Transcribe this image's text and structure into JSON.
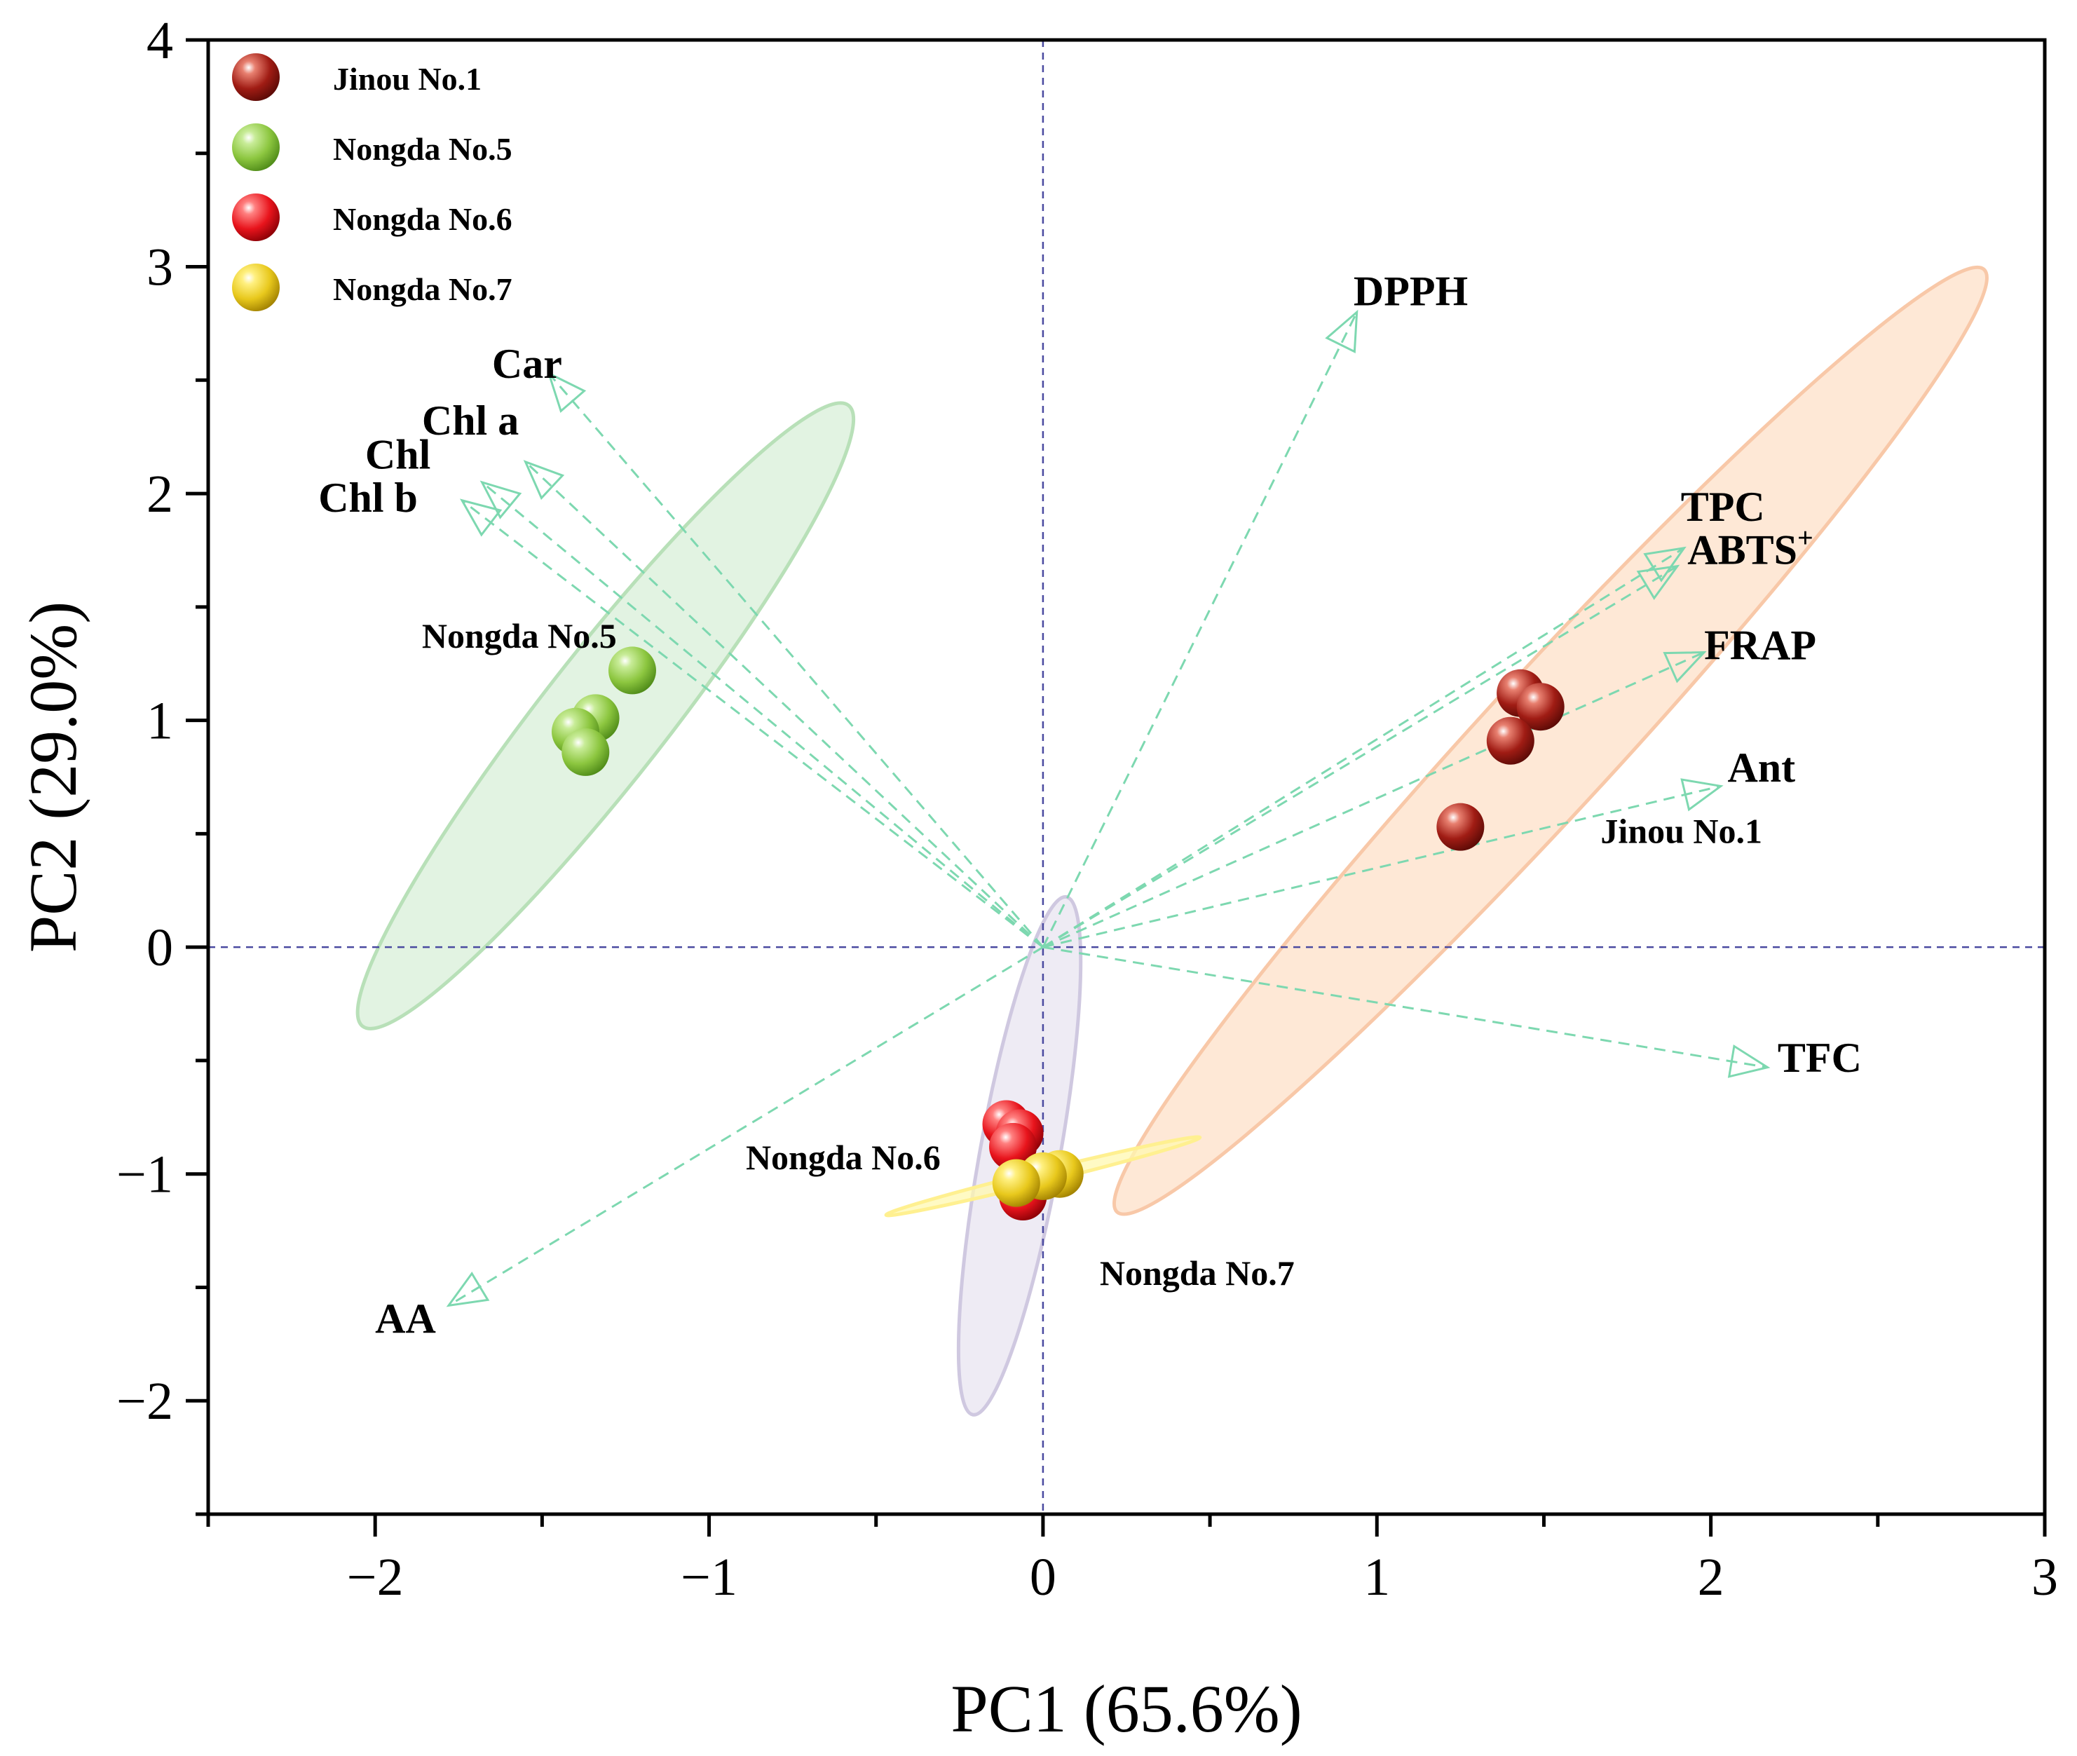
{
  "chart_data": {
    "type": "scatter",
    "subtype": "pca-biplot",
    "xlabel": "PC1 (65.6%)",
    "ylabel": "PC2 (29.0%)",
    "xlim": [
      -2.5,
      3
    ],
    "ylim": [
      -2.5,
      4
    ],
    "xticks": [
      -2,
      -1,
      0,
      1,
      2,
      3
    ],
    "yticks": [
      -2,
      -1,
      0,
      1,
      2,
      3,
      4
    ],
    "xtick_labels": [
      "−2",
      "−1",
      "0",
      "1",
      "2",
      "3"
    ],
    "ytick_labels": [
      "−2",
      "−1",
      "0",
      "1",
      "2",
      "3",
      "4"
    ],
    "grid": false,
    "reference_lines": {
      "x": 0,
      "y": 0
    },
    "legend": {
      "position": "top-left",
      "entries": [
        {
          "name": "Jinou No.1",
          "color": "#a01c14"
        },
        {
          "name": "Nongda No.5",
          "color": "#8cc63f"
        },
        {
          "name": "Nongda No.6",
          "color": "#e8141c"
        },
        {
          "name": "Nongda No.7",
          "color": "#e8c81c"
        }
      ]
    },
    "series": [
      {
        "name": "Jinou No.1",
        "color": "#a01c14",
        "label": "Jinou No.1",
        "points": [
          [
            1.43,
            1.12
          ],
          [
            1.49,
            1.06
          ],
          [
            1.4,
            0.91
          ],
          [
            1.25,
            0.53
          ]
        ],
        "ellipse": {
          "cx": 1.52,
          "cy": 0.91,
          "rx": 2.45,
          "ry": 0.22,
          "angle_deg": 58,
          "fill": "#fde0c8",
          "stroke": "#f8c8a8"
        }
      },
      {
        "name": "Nongda No.5",
        "color": "#8cc63f",
        "label": "Nongda No.5",
        "points": [
          [
            -1.23,
            1.22
          ],
          [
            -1.34,
            1.01
          ],
          [
            -1.4,
            0.95
          ],
          [
            -1.37,
            0.86
          ]
        ],
        "ellipse": {
          "cx": -1.31,
          "cy": 1.02,
          "rx": 1.55,
          "ry": 0.2,
          "angle_deg": 62,
          "fill": "#d8efd8",
          "stroke": "#b8e0b8"
        }
      },
      {
        "name": "Nongda No.6",
        "color": "#e8141c",
        "label": "Nongda No.6",
        "points": [
          [
            -0.11,
            -0.78
          ],
          [
            -0.07,
            -0.82
          ],
          [
            -0.09,
            -0.88
          ],
          [
            -0.06,
            -1.1
          ]
        ],
        "ellipse": {
          "cx": -0.07,
          "cy": -0.92,
          "rx": 1.15,
          "ry": 0.12,
          "angle_deg": 83,
          "fill": "#e8e4f0",
          "stroke": "#cfc8e0"
        }
      },
      {
        "name": "Nongda No.7",
        "color": "#e8c81c",
        "label": "Nongda No.7",
        "points": [
          [
            0.05,
            -1.0
          ],
          [
            0.0,
            -1.01
          ],
          [
            -0.08,
            -1.04
          ]
        ],
        "ellipse": {
          "cx": 0.0,
          "cy": -1.01,
          "rx": 0.5,
          "ry": 0.025,
          "angle_deg": 20,
          "fill": "#fff8b0",
          "stroke": "#fff090"
        }
      }
    ],
    "series_labels": [
      {
        "text": "Nongda No.5",
        "x": -1.86,
        "y": 1.32
      },
      {
        "text": "Jinou No.1",
        "x": 1.67,
        "y": 0.46
      },
      {
        "text": "Nongda No.6",
        "x": -0.89,
        "y": -0.98
      },
      {
        "text": "Nongda No.7",
        "x": 0.17,
        "y": -1.49
      }
    ],
    "loadings": [
      {
        "name": "DPPH",
        "x": 0.94,
        "y": 2.8,
        "label_x": 0.93,
        "label_y": 2.83
      },
      {
        "name": "Car",
        "x": -1.48,
        "y": 2.53,
        "label_x": -1.65,
        "label_y": 2.51
      },
      {
        "name": "Chl a",
        "x": -1.55,
        "y": 2.14,
        "label_x": -1.86,
        "label_y": 2.26
      },
      {
        "name": "Chl",
        "x": -1.68,
        "y": 2.05,
        "label_x": -2.03,
        "label_y": 2.11
      },
      {
        "name": "Chl b",
        "x": -1.74,
        "y": 1.97,
        "label_x": -2.17,
        "label_y": 1.92
      },
      {
        "name": "TPC",
        "x": 1.92,
        "y": 1.76,
        "label_x": 1.91,
        "label_y": 1.88
      },
      {
        "name": "ABTS",
        "sup": "+",
        "x": 1.9,
        "y": 1.68,
        "label_x": 1.93,
        "label_y": 1.69
      },
      {
        "name": "FRAP",
        "x": 1.98,
        "y": 1.3,
        "label_x": 1.98,
        "label_y": 1.27
      },
      {
        "name": "Ant",
        "x": 2.03,
        "y": 0.71,
        "label_x": 2.05,
        "label_y": 0.73
      },
      {
        "name": "TFC",
        "x": 2.17,
        "y": -0.53,
        "label_x": 2.2,
        "label_y": -0.55
      },
      {
        "name": "AA",
        "x": -1.78,
        "y": -1.58,
        "label_x": -2.0,
        "label_y": -1.7
      }
    ]
  }
}
